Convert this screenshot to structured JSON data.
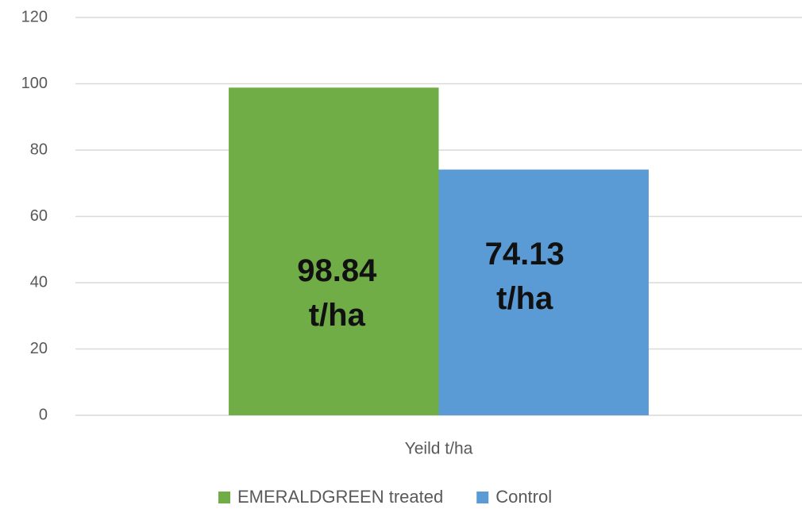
{
  "chart_data": {
    "type": "bar",
    "categories": [
      "Yeild t/ha"
    ],
    "series": [
      {
        "name": "EMERALDGREEN treated",
        "color": "#70ad47",
        "values": [
          98.84
        ],
        "value_labels": [
          "98.84 t/ha"
        ]
      },
      {
        "name": "Control",
        "color": "#5b9bd5",
        "values": [
          74.13
        ],
        "value_labels": [
          "74.13 t/ha"
        ]
      }
    ],
    "ylim": [
      0,
      120
    ],
    "yticks": [
      0,
      20,
      40,
      60,
      80,
      100,
      120
    ],
    "grid": true,
    "legend": "bottom"
  }
}
